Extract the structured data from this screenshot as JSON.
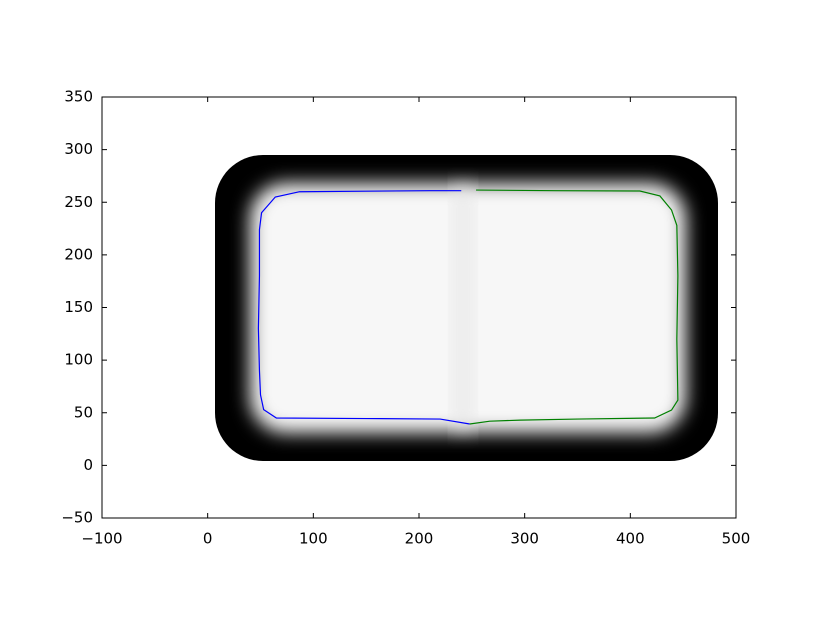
{
  "chart_data": {
    "type": "line",
    "xlim": [
      -100,
      500
    ],
    "xticks": [
      {
        "value": -100,
        "label": "−100"
      },
      0,
      100,
      200,
      300,
      400,
      500
    ],
    "ylim": [
      -50,
      350
    ],
    "yticks": [
      {
        "value": -50,
        "label": "−50"
      },
      0,
      50,
      100,
      150,
      200,
      250,
      300,
      350
    ],
    "series": [
      {
        "color": "#0000ff",
        "x": [
          240,
          210,
          150,
          87,
          64,
          51,
          49,
          49,
          48,
          49,
          50,
          53,
          65,
          150,
          220,
          248
        ],
        "values": [
          261,
          261,
          260.5,
          260,
          255,
          240,
          224,
          180,
          130,
          90,
          67,
          53,
          45,
          44.5,
          44,
          39.3
        ]
      },
      {
        "color": "#008000",
        "x": [
          254,
          330,
          409,
          428,
          439,
          444,
          445,
          444,
          445,
          439,
          423,
          350,
          296,
          267,
          248
        ],
        "values": [
          261.6,
          261,
          260.7,
          256,
          242.6,
          228,
          180,
          120,
          62,
          52.6,
          45,
          44,
          43,
          42,
          39.3
        ]
      }
    ]
  }
}
